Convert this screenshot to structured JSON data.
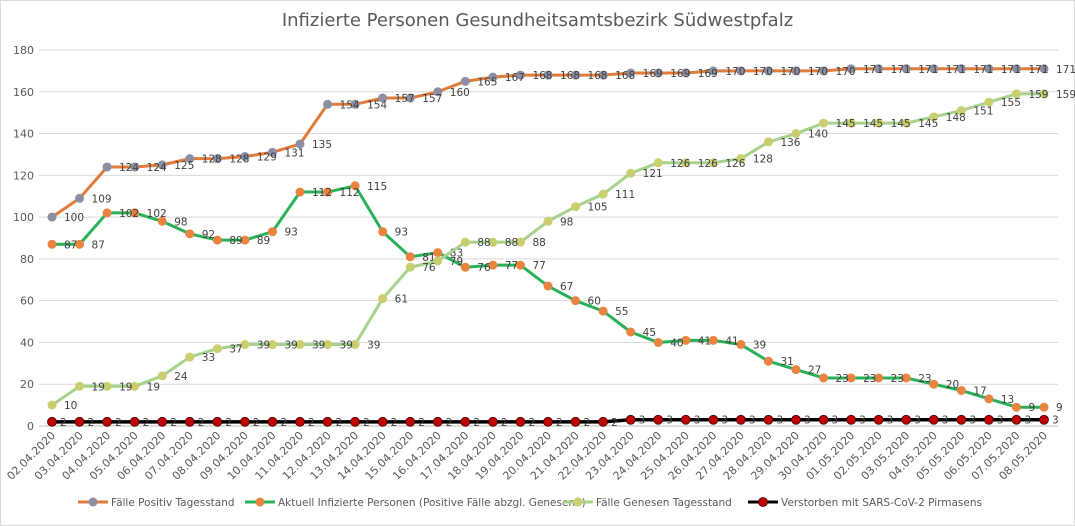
{
  "chart_data": {
    "type": "line",
    "title": "Infizierte Personen Gesundheitsamtsbezirk Südwestpfalz",
    "xlabel": "",
    "ylabel": "",
    "ylim": [
      0,
      180
    ],
    "yticks": [
      0,
      20,
      40,
      60,
      80,
      100,
      120,
      140,
      160,
      180
    ],
    "grid": true,
    "legend_position": "bottom",
    "categories": [
      "02.04.2020",
      "03.04.2020",
      "04.04.2020",
      "05.04.2020",
      "06.04.2020",
      "07.04.2020",
      "08.04.2020",
      "09.04.2020",
      "10.04.2020",
      "11.04.2020",
      "12.04.2020",
      "13.04.2020",
      "14.04.2020",
      "15.04.2020",
      "16.04.2020",
      "17.04.2020",
      "18.04.2020",
      "19.04.2020",
      "20.04.2020",
      "21.04.2020",
      "22.04.2020",
      "23.04.2020",
      "24.04.2020",
      "25.04.2020",
      "26.04.2020",
      "27.04.2020",
      "28.04.2020",
      "29.04.2020",
      "30.04.2020",
      "01.05.2020",
      "02.05.2020",
      "03.05.2020",
      "04.05.2020",
      "05.05.2020",
      "06.05.2020",
      "07.05.2020",
      "08.05.2020"
    ],
    "series": [
      {
        "name": "Fälle Positiv Tagesstand",
        "line_color": "#e07b39",
        "marker_color": "#8c8fa3",
        "values": [
          100,
          109,
          124,
          124,
          125,
          128,
          128,
          129,
          131,
          135,
          154,
          154,
          157,
          157,
          160,
          165,
          167,
          168,
          168,
          168,
          168,
          169,
          169,
          169,
          170,
          170,
          170,
          170,
          170,
          171,
          171,
          171,
          171,
          171,
          171,
          171,
          171
        ]
      },
      {
        "name": "Aktuell Infizierte Personen (Positive Fälle abzgl. Genesene)",
        "line_color": "#2bb05a",
        "marker_color": "#e8843f",
        "values": [
          87,
          87,
          102,
          102,
          98,
          92,
          89,
          89,
          93,
          112,
          112,
          115,
          93,
          81,
          83,
          76,
          77,
          77,
          67,
          60,
          55,
          45,
          40,
          41,
          41,
          39,
          31,
          27,
          23,
          23,
          23,
          23,
          20,
          17,
          13,
          9,
          9
        ]
      },
      {
        "name": "Fälle Genesen Tagesstand",
        "line_color": "#a9d18e",
        "marker_color": "#c9cf6e",
        "values": [
          10,
          19,
          19,
          19,
          24,
          33,
          37,
          39,
          39,
          39,
          39,
          39,
          61,
          76,
          79,
          88,
          88,
          88,
          98,
          105,
          111,
          121,
          126,
          126,
          126,
          128,
          136,
          140,
          145,
          145,
          145,
          145,
          148,
          151,
          155,
          159,
          159
        ]
      },
      {
        "name": "Verstorben mit SARS-CoV-2 Pirmasens",
        "line_color": "#000000",
        "marker_color": "#c00000",
        "values": [
          2,
          2,
          2,
          2,
          2,
          2,
          2,
          2,
          2,
          2,
          2,
          2,
          2,
          2,
          2,
          2,
          2,
          2,
          2,
          2,
          2,
          3,
          3,
          3,
          3,
          3,
          3,
          3,
          3,
          3,
          3,
          3,
          3,
          3,
          3,
          3,
          3
        ]
      }
    ]
  }
}
